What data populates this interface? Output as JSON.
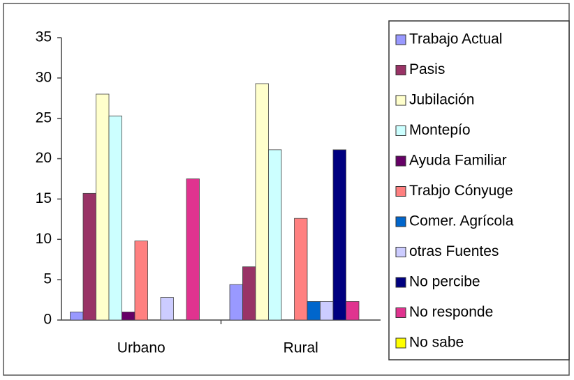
{
  "chart_data": {
    "type": "bar",
    "categories": [
      "Urbano",
      "Rural"
    ],
    "series": [
      {
        "name": "Trabajo Actual",
        "color": "#9999ff",
        "values": [
          1,
          4.4
        ]
      },
      {
        "name": "Pasis",
        "color": "#993366",
        "values": [
          15.7,
          6.6
        ]
      },
      {
        "name": "Jubilación",
        "color": "#ffffcc",
        "values": [
          28,
          29.3
        ]
      },
      {
        "name": "Montepío",
        "color": "#ccffff",
        "values": [
          25.3,
          21.1
        ]
      },
      {
        "name": "Ayuda Familiar",
        "color": "#660066",
        "values": [
          1,
          0
        ]
      },
      {
        "name": "Trabjo Cónyuge",
        "color": "#ff8080",
        "values": [
          9.8,
          12.6
        ]
      },
      {
        "name": "Comer. Agrícola",
        "color": "#0066cc",
        "values": [
          0,
          2.3
        ]
      },
      {
        "name": "otras Fuentes",
        "color": "#ccccff",
        "values": [
          2.8,
          2.3
        ]
      },
      {
        "name": "No percibe",
        "color": "#000080",
        "values": [
          0,
          21.1
        ]
      },
      {
        "name": "No responde",
        "color": "#e0338f",
        "values": [
          17.5,
          2.3
        ]
      },
      {
        "name": "No sabe",
        "color": "#ffff00",
        "values": [
          0,
          0
        ]
      }
    ],
    "ylim": [
      0,
      35
    ],
    "yticks": [
      0,
      5,
      10,
      15,
      20,
      25,
      30,
      35
    ],
    "grid": false,
    "legend": "right"
  }
}
